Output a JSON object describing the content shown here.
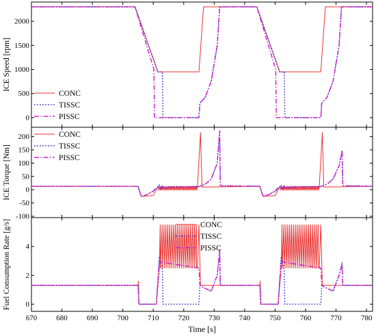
{
  "chart_data": [
    {
      "type": "line",
      "ylabel": "ICE Speed [rpm]",
      "xlim": [
        670,
        782
      ],
      "ylim": [
        -200,
        2400
      ],
      "yticks": [
        0,
        500,
        1000,
        1500,
        2000
      ],
      "legend_placement": "bottom-left",
      "series": [
        {
          "name": "CONC",
          "color": "#e8312f",
          "style": "solid",
          "points": [
            [
              670,
              2300
            ],
            [
              704,
              2300
            ],
            [
              711.5,
              950
            ],
            [
              725,
              950
            ],
            [
              726.5,
              2300
            ],
            [
              744,
              2300
            ],
            [
              751.5,
              950
            ],
            [
              765,
              950
            ],
            [
              766.5,
              2300
            ],
            [
              782,
              2300
            ]
          ]
        },
        {
          "name": "TISSC",
          "color": "#2a2acc",
          "style": "dotted",
          "points": [
            [
              670,
              2300
            ],
            [
              704,
              2300
            ],
            [
              711.5,
              950
            ],
            [
              713,
              950
            ],
            [
              713.2,
              0
            ],
            [
              725,
              0
            ],
            [
              725.3,
              300
            ],
            [
              727,
              420
            ],
            [
              729,
              750
            ],
            [
              731,
              1500
            ],
            [
              731.8,
              2300
            ],
            [
              744,
              2300
            ],
            [
              751.5,
              950
            ],
            [
              753,
              950
            ],
            [
              753.2,
              0
            ],
            [
              765,
              0
            ],
            [
              765.3,
              300
            ],
            [
              767,
              420
            ],
            [
              769,
              750
            ],
            [
              771,
              1500
            ],
            [
              771.8,
              2300
            ],
            [
              782,
              2300
            ]
          ]
        },
        {
          "name": "PISSC",
          "color": "#cc22cc",
          "style": "dashdot",
          "points": [
            [
              670,
              2300
            ],
            [
              704,
              2300
            ],
            [
              710.2,
              1000
            ],
            [
              710.4,
              0
            ],
            [
              725,
              0
            ],
            [
              725.3,
              300
            ],
            [
              727,
              420
            ],
            [
              729,
              750
            ],
            [
              731,
              1500
            ],
            [
              731.8,
              2300
            ],
            [
              744,
              2300
            ],
            [
              750.2,
              1000
            ],
            [
              750.4,
              0
            ],
            [
              765,
              0
            ],
            [
              765.3,
              300
            ],
            [
              767,
              420
            ],
            [
              769,
              750
            ],
            [
              771,
              1500
            ],
            [
              771.8,
              2300
            ],
            [
              782,
              2300
            ]
          ]
        }
      ]
    },
    {
      "type": "line",
      "ylabel": "ICE Torque [Nm]",
      "xlim": [
        670,
        782
      ],
      "ylim": [
        -105,
        235
      ],
      "yticks": [
        -100,
        -50,
        0,
        50,
        100,
        150,
        200
      ],
      "legend_placement": "top-left",
      "series": [
        {
          "name": "CONC",
          "color": "#e8312f",
          "style": "solid",
          "points": [
            [
              670,
              13
            ],
            [
              705,
              13
            ],
            [
              706,
              -25
            ],
            [
              710,
              -22
            ],
            [
              711.5,
              13
            ],
            [
              724.5,
              13
            ],
            [
              725.5,
              215
            ],
            [
              726,
              10
            ],
            [
              745,
              13
            ],
            [
              746,
              -25
            ],
            [
              750,
              -22
            ],
            [
              751.5,
              13
            ],
            [
              764.5,
              13
            ],
            [
              765.5,
              215
            ],
            [
              766,
              10
            ],
            [
              782,
              13
            ]
          ],
          "oscillation": {
            "ranges": [
              [
                711.5,
                724.5
              ],
              [
                751.5,
                764.5
              ]
            ],
            "low": -2,
            "high": 13,
            "count": 27
          }
        },
        {
          "name": "TISSC",
          "color": "#2a2acc",
          "style": "dotted",
          "points": [
            [
              670,
              13
            ],
            [
              705,
              13
            ],
            [
              706,
              -25
            ],
            [
              708,
              -18
            ],
            [
              710,
              -5
            ],
            [
              711.5,
              5
            ],
            [
              712,
              18
            ],
            [
              712.5,
              0
            ],
            [
              713,
              15
            ],
            [
              714,
              5
            ],
            [
              715,
              11
            ],
            [
              725,
              12
            ],
            [
              727,
              20
            ],
            [
              729,
              40
            ],
            [
              731,
              100
            ],
            [
              731.8,
              220
            ],
            [
              732,
              15
            ],
            [
              745,
              13
            ],
            [
              746,
              -25
            ],
            [
              748,
              -18
            ],
            [
              750,
              -5
            ],
            [
              751.5,
              5
            ],
            [
              752,
              18
            ],
            [
              752.5,
              0
            ],
            [
              753,
              15
            ],
            [
              754,
              5
            ],
            [
              755,
              11
            ],
            [
              765,
              12
            ],
            [
              767,
              20
            ],
            [
              769,
              40
            ],
            [
              771,
              90
            ],
            [
              772,
              145
            ],
            [
              772.2,
              15
            ],
            [
              782,
              13
            ]
          ]
        },
        {
          "name": "PISSC",
          "color": "#cc22cc",
          "style": "dashdot",
          "points": [
            [
              670,
              13
            ],
            [
              705,
              13
            ],
            [
              706,
              -25
            ],
            [
              708,
              -18
            ],
            [
              710,
              -5
            ],
            [
              711,
              8
            ],
            [
              725,
              12
            ],
            [
              727,
              20
            ],
            [
              729,
              40
            ],
            [
              731,
              100
            ],
            [
              731.8,
              222
            ],
            [
              732,
              15
            ],
            [
              745,
              13
            ],
            [
              746,
              -25
            ],
            [
              748,
              -18
            ],
            [
              750,
              -5
            ],
            [
              751,
              8
            ],
            [
              765,
              12
            ],
            [
              767,
              20
            ],
            [
              769,
              40
            ],
            [
              771,
              90
            ],
            [
              772,
              145
            ],
            [
              772.2,
              15
            ],
            [
              782,
              13
            ]
          ]
        }
      ]
    },
    {
      "type": "line",
      "ylabel": "Fuel Consumption Rate [g/s]",
      "xlabel": "Time [s]",
      "xlim": [
        670,
        782
      ],
      "ylim": [
        -0.5,
        6
      ],
      "xticks": [
        670,
        680,
        690,
        700,
        710,
        720,
        730,
        740,
        750,
        760,
        770,
        780
      ],
      "yticks": [
        0,
        2,
        4
      ],
      "legend_placement": "top-center",
      "series": [
        {
          "name": "CONC",
          "color": "#e8312f",
          "style": "solid",
          "points": [
            [
              670,
              1.3
            ],
            [
              705,
              1.3
            ],
            [
              705.1,
              1.6
            ],
            [
              705.3,
              0
            ],
            [
              711,
              0
            ],
            [
              712,
              2.5
            ],
            [
              724.5,
              2.5
            ],
            [
              725,
              5.5
            ],
            [
              725.5,
              1.3
            ],
            [
              745,
              1.3
            ],
            [
              745.1,
              1.6
            ],
            [
              745.3,
              0
            ],
            [
              751,
              0
            ],
            [
              752,
              2.5
            ],
            [
              764.5,
              2.5
            ],
            [
              765,
              5.5
            ],
            [
              765.5,
              1.3
            ],
            [
              782,
              1.3
            ]
          ],
          "oscillation": {
            "ranges": [
              [
                712,
                724.5
              ],
              [
                752,
                764.5
              ]
            ],
            "low": 2.5,
            "high": 5.5,
            "count": 20
          }
        },
        {
          "name": "TISSC",
          "color": "#2a2acc",
          "style": "dotted",
          "points": [
            [
              670,
              1.3
            ],
            [
              705,
              1.3
            ],
            [
              705.3,
              0
            ],
            [
              711,
              0
            ],
            [
              712,
              3.3
            ],
            [
              712.5,
              2.8
            ],
            [
              713,
              2.3
            ],
            [
              713.2,
              0
            ],
            [
              725,
              0
            ],
            [
              725.3,
              1.3
            ],
            [
              727,
              1.1
            ],
            [
              729,
              0.9
            ],
            [
              731,
              2
            ],
            [
              731.8,
              3.8
            ],
            [
              732,
              1.3
            ],
            [
              745,
              1.3
            ],
            [
              745.3,
              0
            ],
            [
              751,
              0
            ],
            [
              752,
              3.3
            ],
            [
              752.5,
              2.8
            ],
            [
              753,
              2.3
            ],
            [
              753.2,
              0
            ],
            [
              765,
              0
            ],
            [
              765.3,
              1.3
            ],
            [
              767,
              1.1
            ],
            [
              769,
              0.9
            ],
            [
              771,
              2
            ],
            [
              772,
              2.9
            ],
            [
              772.2,
              1.3
            ],
            [
              782,
              1.3
            ]
          ]
        },
        {
          "name": "PISSC",
          "color": "#cc22cc",
          "style": "dashdot",
          "points": [
            [
              670,
              1.3
            ],
            [
              705,
              1.3
            ],
            [
              705.3,
              0
            ],
            [
              711,
              0
            ],
            [
              712,
              3.0
            ],
            [
              713,
              2.9
            ],
            [
              725,
              2.5
            ],
            [
              725.3,
              1.3
            ],
            [
              727,
              1.1
            ],
            [
              729,
              0.9
            ],
            [
              731,
              2
            ],
            [
              731.8,
              3.7
            ],
            [
              732,
              1.3
            ],
            [
              745,
              1.3
            ],
            [
              745.3,
              0
            ],
            [
              751,
              0
            ],
            [
              752,
              3.0
            ],
            [
              753,
              2.9
            ],
            [
              765,
              2.5
            ],
            [
              765.3,
              1.3
            ],
            [
              767,
              1.1
            ],
            [
              769,
              0.9
            ],
            [
              771,
              2
            ],
            [
              772,
              2.7
            ],
            [
              772.2,
              1.3
            ],
            [
              782,
              1.3
            ]
          ]
        }
      ]
    }
  ]
}
